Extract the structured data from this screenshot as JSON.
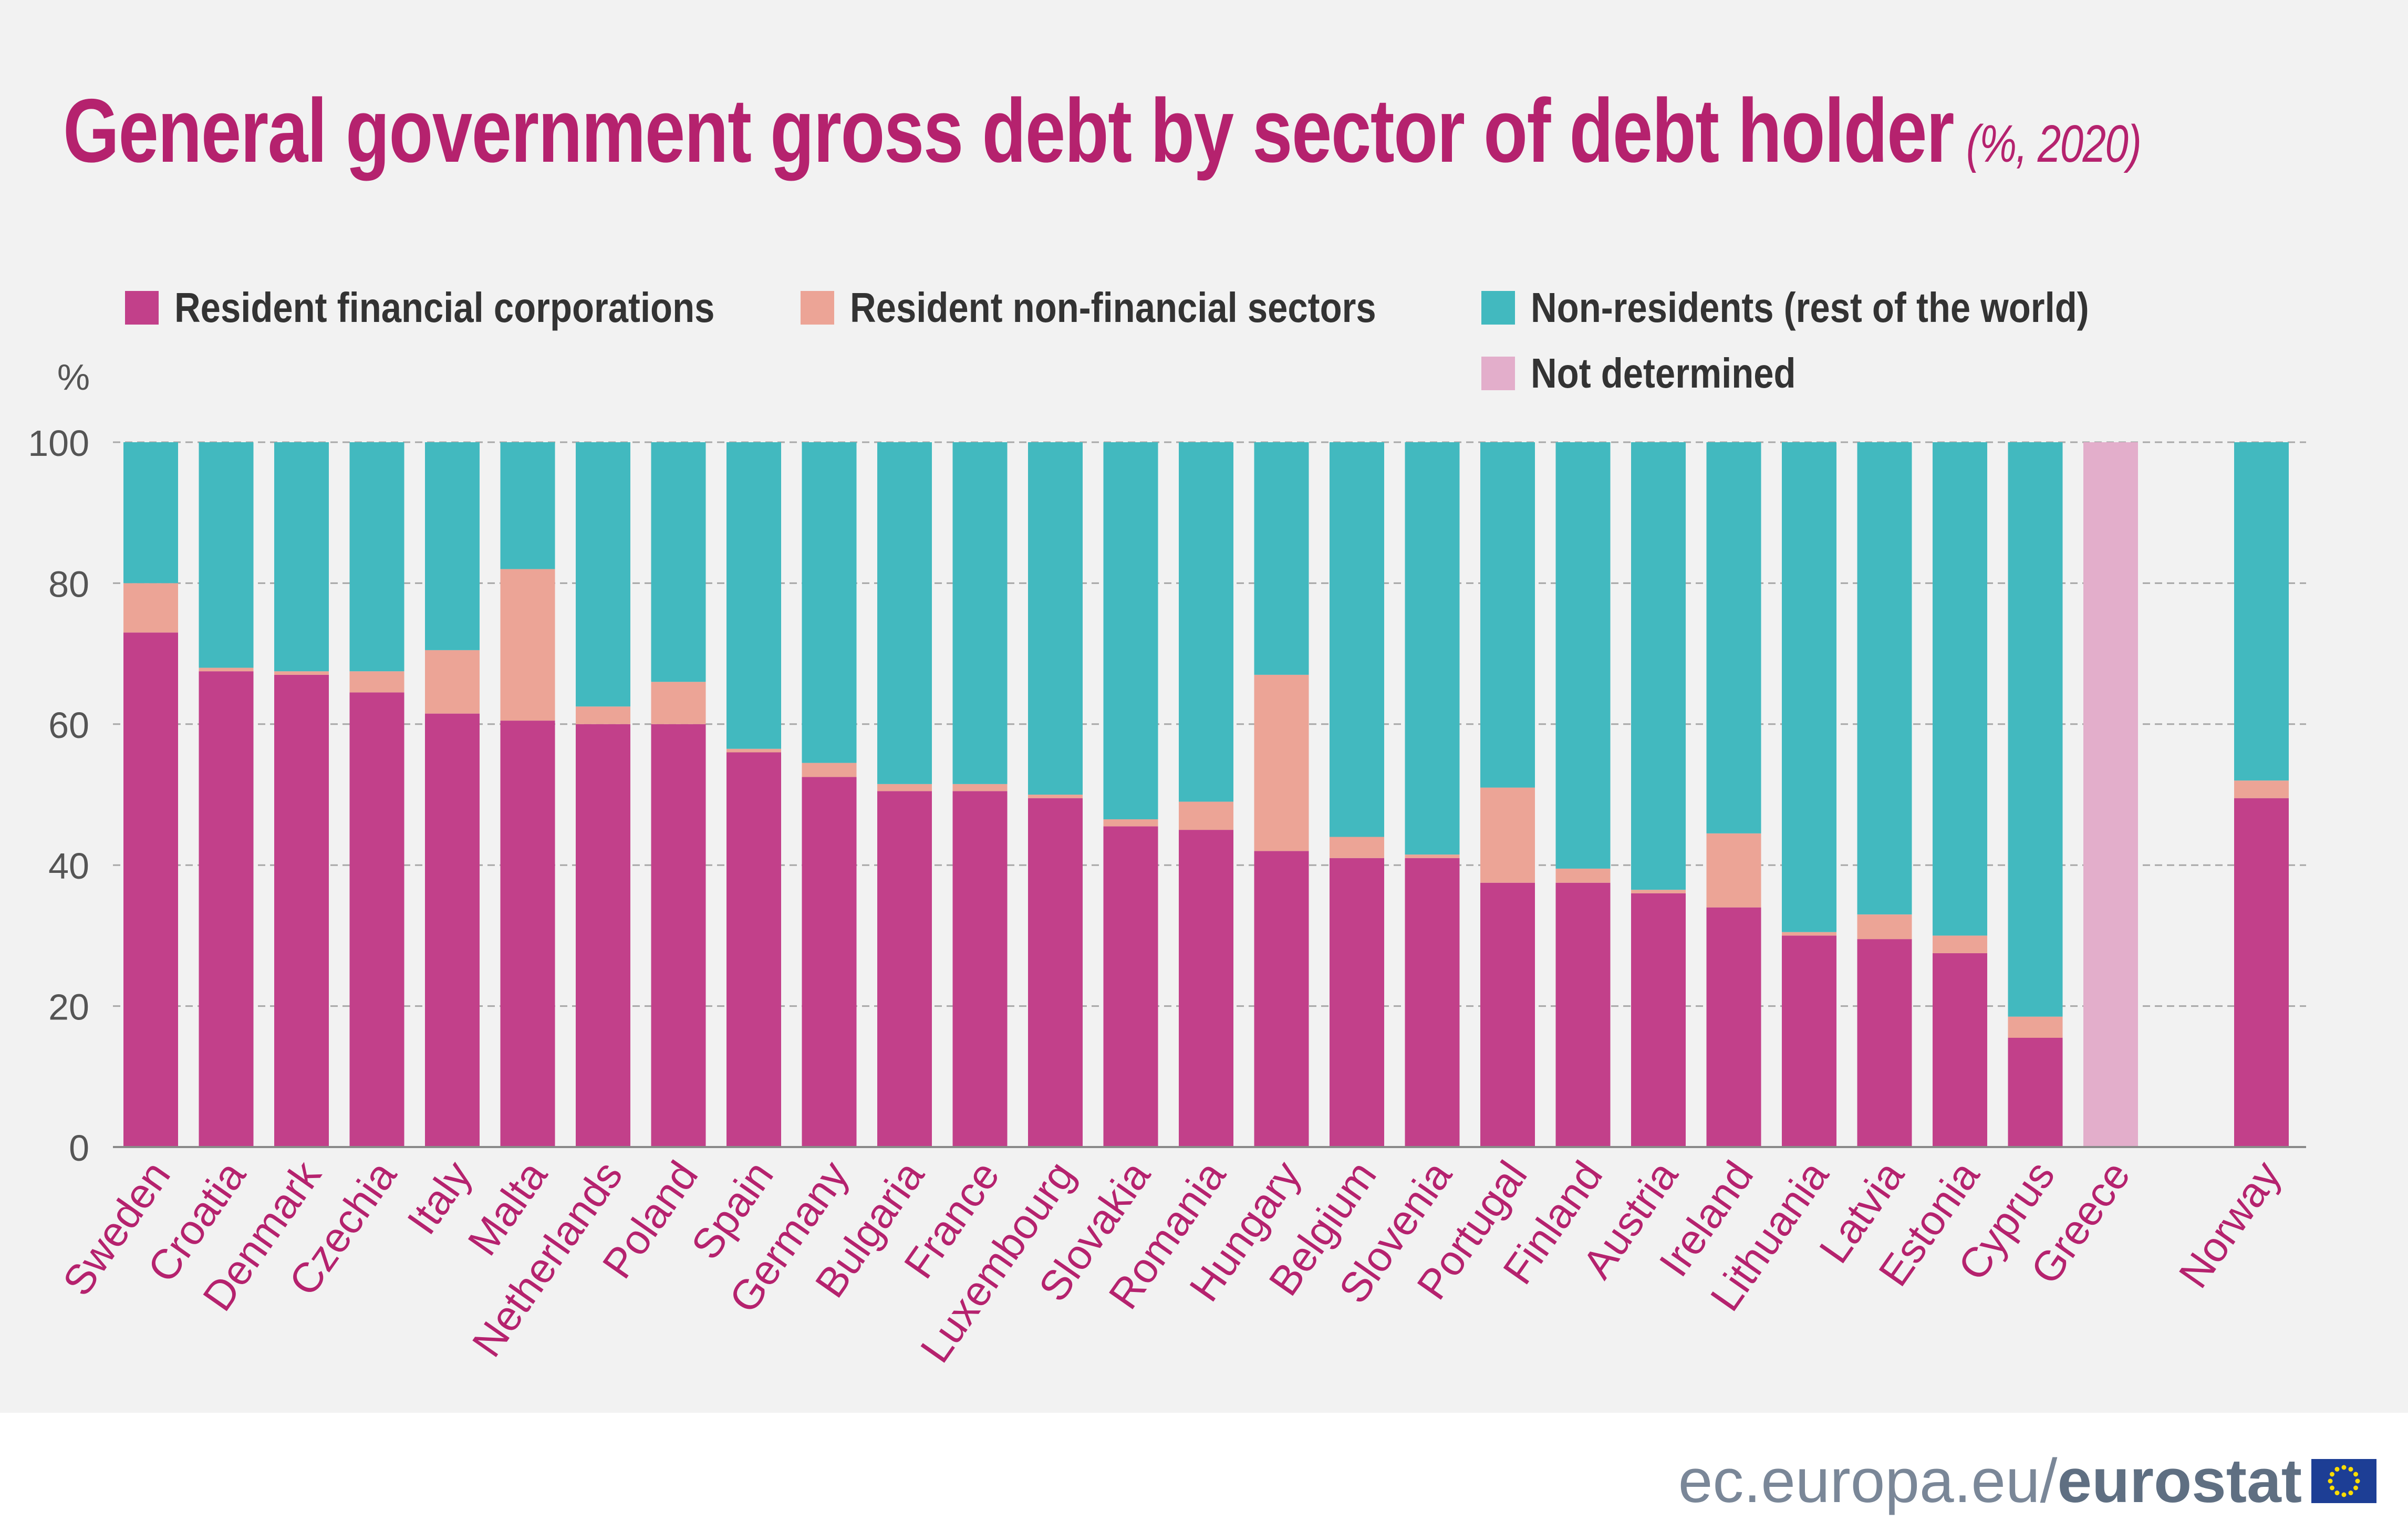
{
  "title": {
    "main": "General government gross debt by sector of debt holder",
    "sub": "(%, 2020)"
  },
  "legend": [
    {
      "label": "Resident financial corporations",
      "color": "#c2408a"
    },
    {
      "label": "Resident non-financial sectors",
      "color": "#eca496"
    },
    {
      "label": "Non-residents (rest of the world)",
      "color": "#42b9bf"
    },
    {
      "label": "Not determined",
      "color": "#e3aecb"
    }
  ],
  "footer": {
    "site": "ec.europa.eu/",
    "brand": "eurostat",
    "flag_icon": "eu-flag-icon"
  },
  "chart_data": {
    "type": "bar",
    "stacked": true,
    "ylabel": "%",
    "ylim": [
      0,
      100
    ],
    "yticks": [
      0,
      20,
      40,
      60,
      80,
      100
    ],
    "grid": true,
    "legend_position": "top",
    "categories": [
      "Sweden",
      "Croatia",
      "Denmark",
      "Czechia",
      "Italy",
      "Malta",
      "Netherlands",
      "Poland",
      "Spain",
      "Germany",
      "Bulgaria",
      "France",
      "Luxembourg",
      "Slovakia",
      "Romania",
      "Hungary",
      "Belgium",
      "Slovenia",
      "Portugal",
      "Finland",
      "Austria",
      "Ireland",
      "Lithuania",
      "Latvia",
      "Estonia",
      "Cyprus",
      "Greece",
      "",
      "Norway"
    ],
    "series": [
      {
        "name": "Resident financial corporations",
        "color": "#c2408a",
        "values": [
          73,
          67.5,
          67,
          64.5,
          61.5,
          60.5,
          60,
          60,
          56,
          52.5,
          50.5,
          50.5,
          49.5,
          45.5,
          45,
          42,
          41,
          41,
          37.5,
          37.5,
          36,
          34,
          30,
          29.5,
          27.5,
          15.5,
          0,
          null,
          49.5
        ]
      },
      {
        "name": "Resident non-financial sectors",
        "color": "#eca496",
        "values": [
          7,
          0.5,
          0.5,
          3,
          9,
          21.5,
          2.5,
          6,
          0.5,
          2,
          1,
          1,
          0.5,
          1,
          4,
          25,
          3,
          0.5,
          13.5,
          2,
          0.5,
          10.5,
          0.5,
          3.5,
          2.5,
          3,
          0,
          null,
          2.5
        ]
      },
      {
        "name": "Non-residents (rest of the world)",
        "color": "#42b9bf",
        "values": [
          20,
          32,
          32.5,
          32.5,
          29.5,
          18,
          37.5,
          34,
          43.5,
          45.5,
          48.5,
          48.5,
          50,
          53.5,
          51,
          33,
          56,
          58.5,
          49,
          60.5,
          63.5,
          55.5,
          69.5,
          67,
          70,
          81.5,
          0,
          null,
          48
        ]
      },
      {
        "name": "Not determined",
        "color": "#e3aecb",
        "values": [
          0,
          0,
          0,
          0,
          0,
          0,
          0,
          0,
          0,
          0,
          0,
          0,
          0,
          0,
          0,
          0,
          0,
          0,
          0,
          0,
          0,
          0,
          0,
          0,
          0,
          0,
          100,
          null,
          0
        ]
      }
    ]
  }
}
